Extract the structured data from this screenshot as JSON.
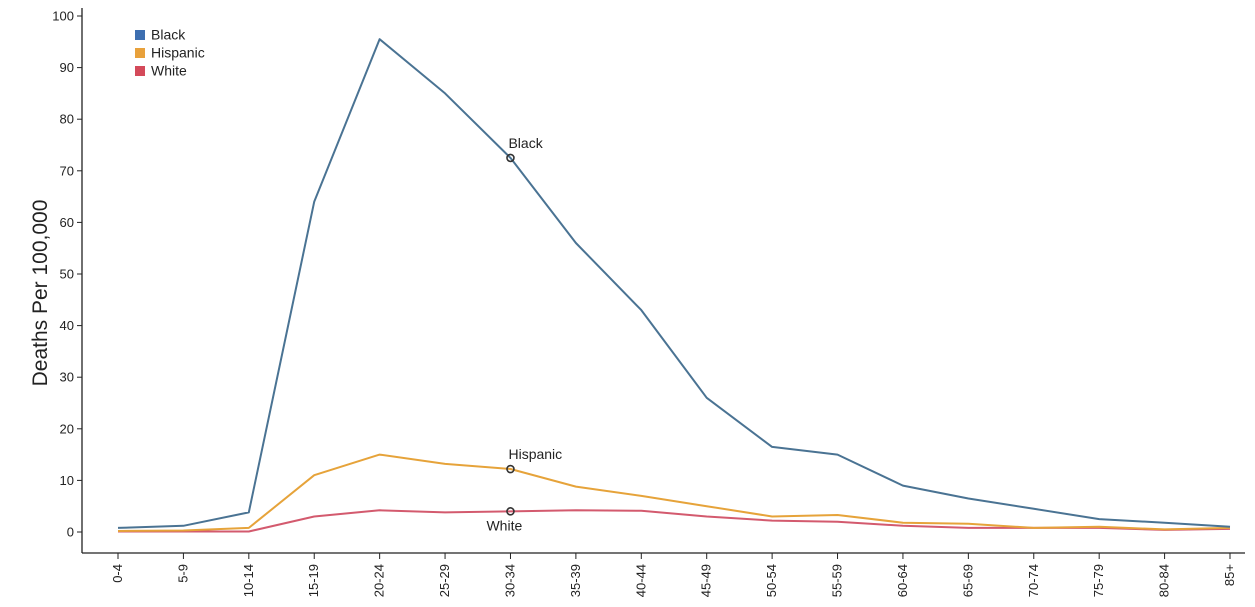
{
  "chart_data": {
    "type": "line",
    "title": "",
    "xlabel": "",
    "ylabel": "Deaths Per 100,000",
    "ylim": [
      0,
      100
    ],
    "yticks": [
      "0",
      "10",
      "20",
      "30",
      "40",
      "50",
      "60",
      "70",
      "80",
      "90",
      "100"
    ],
    "categories": [
      "0-4",
      "5-9",
      "10-14",
      "15-19",
      "20-24",
      "25-29",
      "30-34",
      "35-39",
      "40-44",
      "45-49",
      "50-54",
      "55-59",
      "60-64",
      "65-69",
      "70-74",
      "75-79",
      "80-84",
      "85+"
    ],
    "legend_position": "top-left",
    "grid": false,
    "series": [
      {
        "name": "Black",
        "color": "#4a7393",
        "legend_color": "#3d6fb0",
        "values": [
          0.8,
          1.2,
          3.8,
          64,
          95.5,
          85,
          72.5,
          56,
          43,
          26,
          16.5,
          15,
          9,
          6.5,
          4.5,
          2.5,
          1.8,
          1.0
        ]
      },
      {
        "name": "Hispanic",
        "color": "#e6a33a",
        "legend_color": "#e8a13b",
        "values": [
          0.2,
          0.3,
          0.8,
          11,
          15,
          13.2,
          12.2,
          8.8,
          7,
          5,
          3,
          3.3,
          1.8,
          1.6,
          0.8,
          1.0,
          0.5,
          0.8
        ]
      },
      {
        "name": "White",
        "color": "#d35a6e",
        "legend_color": "#d44a5a",
        "values": [
          0.1,
          0.1,
          0.1,
          3,
          4.2,
          3.8,
          4.0,
          4.2,
          4.1,
          3,
          2.2,
          2,
          1.2,
          0.8,
          0.8,
          0.8,
          0.4,
          0.6
        ]
      }
    ],
    "annotations": [
      {
        "text": "Black",
        "series": "Black",
        "category": "30-34",
        "value": 72.5
      },
      {
        "text": "Hispanic",
        "series": "Hispanic",
        "category": "30-34",
        "value": 12.2
      },
      {
        "text": "White",
        "series": "White",
        "category": "30-34",
        "value": 4.0
      }
    ]
  }
}
